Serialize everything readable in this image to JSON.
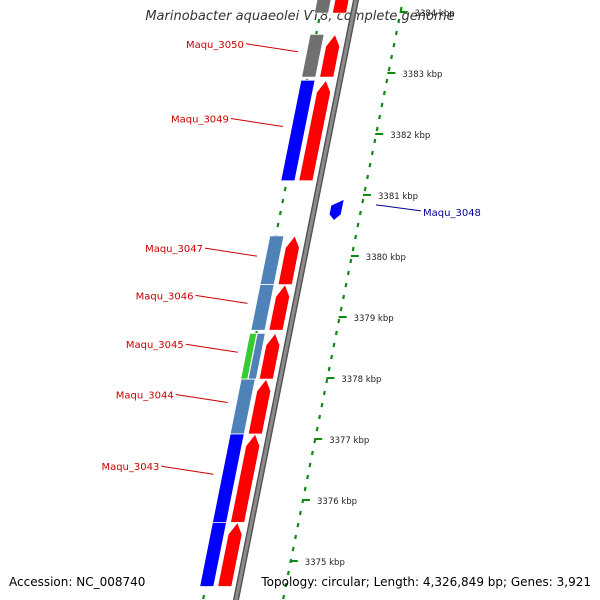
{
  "title": "Marinobacter aquaeolei VT8, complete genome",
  "accession_label": "Accession: NC_008740",
  "topology_label": "Topology: circular; Length: 4,326,849 bp; Genes: 3,921",
  "colors": {
    "backbone": "#8c8c8c",
    "forward_gene": "#ff0000",
    "cds_blue": "#0000ff",
    "cds_steelblue": "#4f83b8",
    "cds_gray": "#707070",
    "cds_green": "#33cc33",
    "tick": "#118811",
    "label_red": "#cc0000",
    "label_blue": "#000099"
  },
  "scale_ticks": [
    {
      "kbp": 3384,
      "label": "3384 kbp"
    },
    {
      "kbp": 3383,
      "label": "3383 kbp"
    },
    {
      "kbp": 3382,
      "label": "3382 kbp"
    },
    {
      "kbp": 3381,
      "label": "3381 kbp"
    },
    {
      "kbp": 3380,
      "label": "3380 kbp"
    },
    {
      "kbp": 3379,
      "label": "3379 kbp"
    },
    {
      "kbp": 3378,
      "label": "3378 kbp"
    },
    {
      "kbp": 3377,
      "label": "3377 kbp"
    },
    {
      "kbp": 3376,
      "label": "3376 kbp"
    },
    {
      "kbp": 3375,
      "label": "3375 kbp"
    }
  ],
  "genes": [
    {
      "label": "",
      "start_kbp": 3383.9,
      "end_kbp": 3384.4,
      "strand": "reverse",
      "color": "cds_gray"
    },
    {
      "label": "Maqu_3050",
      "start_kbp": 3382.85,
      "end_kbp": 3383.55,
      "strand": "reverse",
      "color": "cds_gray"
    },
    {
      "label": "Maqu_3049",
      "start_kbp": 3381.15,
      "end_kbp": 3382.8,
      "strand": "reverse",
      "color": "cds_blue"
    },
    {
      "label": "Maqu_3048",
      "start_kbp": 3380.5,
      "end_kbp": 3380.85,
      "strand": "reverse",
      "color": "cds_blue"
    },
    {
      "label": "Maqu_3047",
      "start_kbp": 3379.45,
      "end_kbp": 3380.25,
      "strand": "reverse",
      "color": "cds_steelblue"
    },
    {
      "label": "Maqu_3046",
      "start_kbp": 3378.7,
      "end_kbp": 3379.45,
      "strand": "reverse",
      "color": "cds_steelblue"
    },
    {
      "label": "Maqu_3045",
      "start_kbp": 3377.9,
      "end_kbp": 3378.65,
      "strand": "reverse",
      "color": "cds_green"
    },
    {
      "label": "",
      "start_kbp": 3377.9,
      "end_kbp": 3378.65,
      "strand": "reverse",
      "color": "cds_steelblue"
    },
    {
      "label": "Maqu_3044",
      "start_kbp": 3377.0,
      "end_kbp": 3377.9,
      "strand": "reverse",
      "color": "cds_steelblue"
    },
    {
      "label": "Maqu_3043",
      "start_kbp": 3375.55,
      "end_kbp": 3377.0,
      "strand": "reverse",
      "color": "cds_blue"
    },
    {
      "label": "",
      "start_kbp": 3374.5,
      "end_kbp": 3375.55,
      "strand": "reverse",
      "color": "cds_blue"
    }
  ]
}
